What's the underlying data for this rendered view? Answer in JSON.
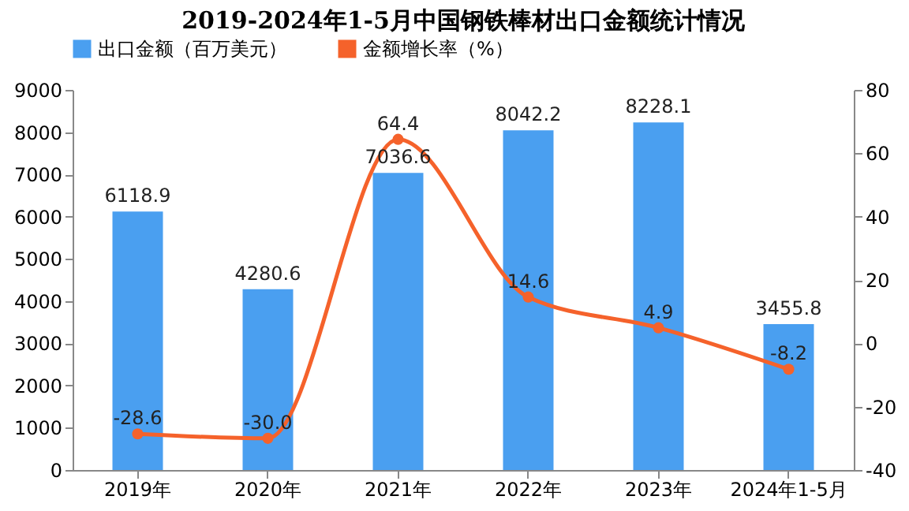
{
  "chart_data": {
    "type": "bar",
    "title": "2019-2024年1-5月中国钢铁棒材出口金额统计情况",
    "categories": [
      "2019年",
      "2020年",
      "2021年",
      "2022年",
      "2023年",
      "2024年1-5月"
    ],
    "series": [
      {
        "name": "出口金额（百万美元）",
        "color": "#4a9ff0",
        "values": [
          6118.9,
          4280.6,
          7036.6,
          8042.2,
          8228.1,
          3455.8
        ],
        "value_labels": [
          "6118.9",
          "4280.6",
          "7036.6",
          "8042.2",
          "8228.1",
          "3455.8"
        ]
      },
      {
        "name": "金额增长率（%）",
        "type": "line",
        "axis": "y2",
        "color": "#f5622b",
        "values": [
          -28.6,
          -30.0,
          64.4,
          14.6,
          4.9,
          -8.2
        ],
        "value_labels": [
          "-28.6",
          "-30.0",
          "64.4",
          "14.6",
          "4.9",
          "-8.2"
        ]
      }
    ],
    "ylim": [
      0,
      9000
    ],
    "yticks": [
      0,
      1000,
      2000,
      3000,
      4000,
      5000,
      6000,
      7000,
      8000,
      9000
    ],
    "y2lim": [
      -40,
      80
    ],
    "y2ticks": [
      -40,
      -20,
      0,
      20,
      40,
      60,
      80
    ],
    "legend": "top",
    "grid": false,
    "marker": "circle",
    "line_style": "solid"
  }
}
